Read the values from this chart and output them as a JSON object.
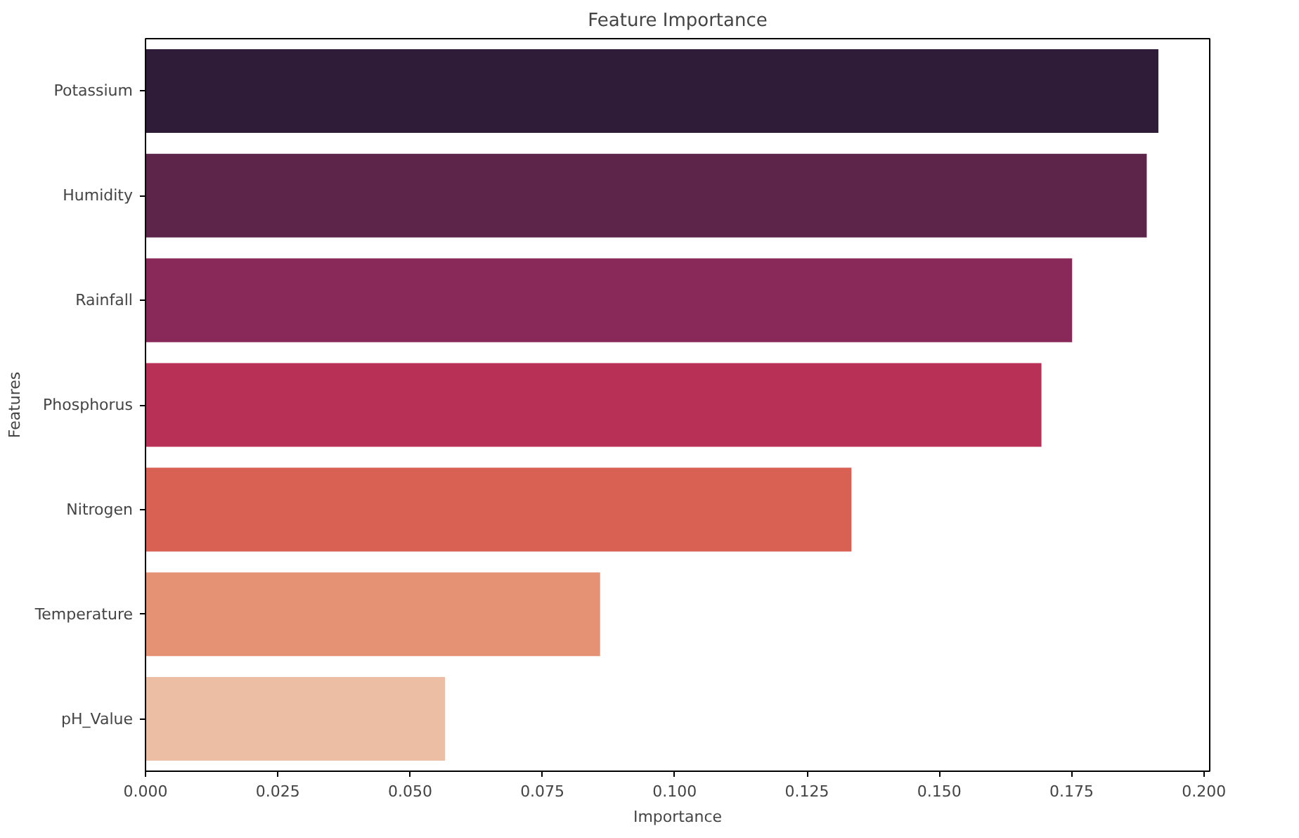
{
  "chart_data": {
    "type": "bar",
    "orientation": "horizontal",
    "title": "Feature Importance",
    "xlabel": "Importance",
    "ylabel": "Features",
    "categories": [
      "Potassium",
      "Humidity",
      "Rainfall",
      "Phosphorus",
      "Nitrogen",
      "Temperature",
      "pH_Value"
    ],
    "values": [
      0.1914,
      0.1892,
      0.1751,
      0.1693,
      0.1334,
      0.0859,
      0.0566
    ],
    "colors": [
      "#2e1c38",
      "#5c2549",
      "#88295a",
      "#b83055",
      "#d96153",
      "#e59274",
      "#ecbfa4"
    ],
    "xlim": [
      0,
      0.2011
    ],
    "xticks": [
      {
        "value": 0,
        "label": "0.000"
      },
      {
        "value": 0.025,
        "label": "0.025"
      },
      {
        "value": 0.05,
        "label": "0.050"
      },
      {
        "value": 0.075,
        "label": "0.075"
      },
      {
        "value": 0.1,
        "label": "0.100"
      },
      {
        "value": 0.125,
        "label": "0.125"
      },
      {
        "value": 0.15,
        "label": "0.150"
      },
      {
        "value": 0.175,
        "label": "0.175"
      },
      {
        "value": 0.2,
        "label": "0.200"
      }
    ],
    "grid": false
  }
}
